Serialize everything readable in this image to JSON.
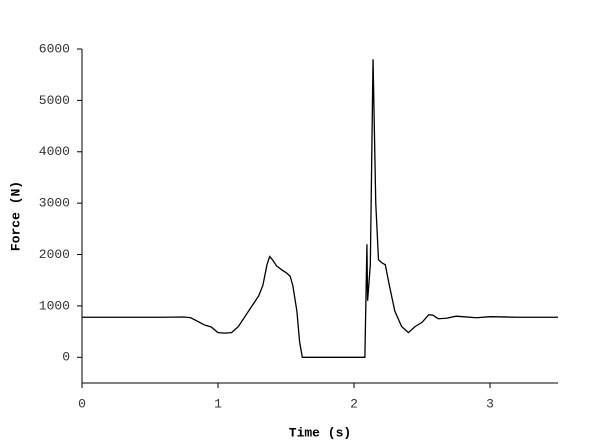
{
  "chart_data": {
    "type": "line",
    "x_label": "Time (s)",
    "y_label": "Force (N)",
    "x": [
      0,
      0.2,
      0.4,
      0.6,
      0.75,
      0.8,
      0.85,
      0.9,
      0.95,
      1.0,
      1.05,
      1.1,
      1.15,
      1.2,
      1.25,
      1.3,
      1.33,
      1.36,
      1.38,
      1.4,
      1.43,
      1.47,
      1.5,
      1.53,
      1.55,
      1.58,
      1.6,
      1.62,
      1.7,
      2.0,
      2.08,
      2.095,
      2.1,
      2.12,
      2.14,
      2.16,
      2.18,
      2.2,
      2.23,
      2.26,
      2.3,
      2.35,
      2.4,
      2.45,
      2.5,
      2.55,
      2.58,
      2.62,
      2.68,
      2.75,
      2.8,
      2.9,
      3.0,
      3.2,
      3.5
    ],
    "series": [
      {
        "name": "Force",
        "color": "#000000",
        "values": [
          780,
          780,
          780,
          780,
          785,
          770,
          700,
          630,
          590,
          480,
          470,
          480,
          600,
          800,
          1000,
          1200,
          1400,
          1800,
          1960,
          1900,
          1780,
          1700,
          1650,
          1580,
          1400,
          900,
          300,
          0,
          0,
          0,
          0,
          2200,
          1100,
          1800,
          5800,
          3000,
          1900,
          1850,
          1800,
          1400,
          900,
          600,
          480,
          600,
          680,
          830,
          820,
          750,
          760,
          800,
          790,
          770,
          790,
          780,
          780
        ]
      }
    ],
    "xlim": [
      0,
      3.5
    ],
    "xticks": [
      0,
      1,
      2,
      3
    ],
    "ylim": [
      -500,
      6000
    ],
    "yticks": [
      0,
      1000,
      2000,
      3000,
      4000,
      5000,
      6000
    ],
    "grid": false
  }
}
